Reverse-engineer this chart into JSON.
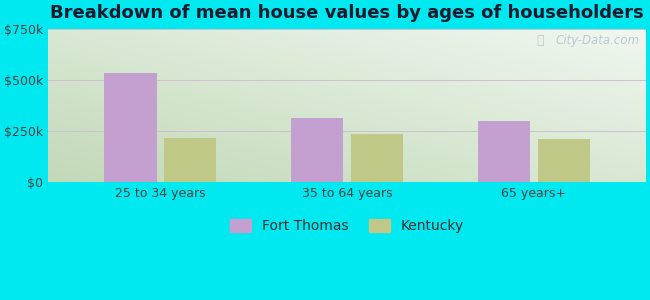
{
  "title": "Breakdown of mean house values by ages of householders",
  "categories": [
    "25 to 34 years",
    "35 to 64 years",
    "65 years+"
  ],
  "fort_thomas_values": [
    535000,
    315000,
    300000
  ],
  "kentucky_values": [
    215000,
    237000,
    210000
  ],
  "fort_thomas_color": "#c4a0d0",
  "kentucky_color": "#c0c888",
  "ylim": [
    0,
    750000
  ],
  "yticks": [
    0,
    250000,
    500000,
    750000
  ],
  "ytick_labels": [
    "$0",
    "$250k",
    "$500k",
    "$750k"
  ],
  "legend_labels": [
    "Fort Thomas",
    "Kentucky"
  ],
  "background_outer": "#00e8f0",
  "bar_width": 0.28,
  "title_fontsize": 13,
  "tick_fontsize": 9,
  "legend_fontsize": 10,
  "watermark": "City-Data.com"
}
